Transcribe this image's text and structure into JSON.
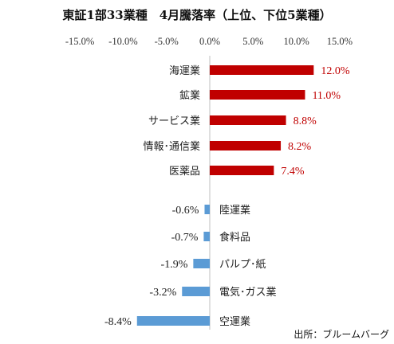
{
  "chart_data": {
    "type": "bar",
    "orientation": "horizontal",
    "title": "東証1部33業種　4月騰落率（上位、下位5業種）",
    "axis_ticks": [
      "-15.0%",
      "-10.0%",
      "-5.0%",
      "0.0%",
      "5.0%",
      "10.0%",
      "15.0%"
    ],
    "xlim": [
      -15,
      15
    ],
    "unit": "%",
    "groups": [
      {
        "name": "上位",
        "color": "#c00000",
        "label_color": "#c00000",
        "items": [
          {
            "category": "海運業",
            "value": 12.0,
            "label": "12.0%"
          },
          {
            "category": "鉱業",
            "value": 11.0,
            "label": "11.0%"
          },
          {
            "category": "サービス業",
            "value": 8.8,
            "label": "8.8%"
          },
          {
            "category": "情報･通信業",
            "value": 8.2,
            "label": "8.2%"
          },
          {
            "category": "医薬品",
            "value": 7.4,
            "label": "7.4%"
          }
        ]
      },
      {
        "name": "下位",
        "color": "#5b9bd5",
        "label_color": "#222222",
        "items": [
          {
            "category": "陸運業",
            "value": -0.6,
            "label": "-0.6%"
          },
          {
            "category": "食料品",
            "value": -0.7,
            "label": "-0.7%"
          },
          {
            "category": "パルプ･紙",
            "value": -1.9,
            "label": "-1.9%"
          },
          {
            "category": "電気･ガス業",
            "value": -3.2,
            "label": "-3.2%"
          },
          {
            "category": "空運業",
            "value": -8.4,
            "label": "-8.4%"
          }
        ]
      }
    ],
    "grid": false,
    "legend": "none"
  },
  "source": "出所：ブルームバーグ"
}
